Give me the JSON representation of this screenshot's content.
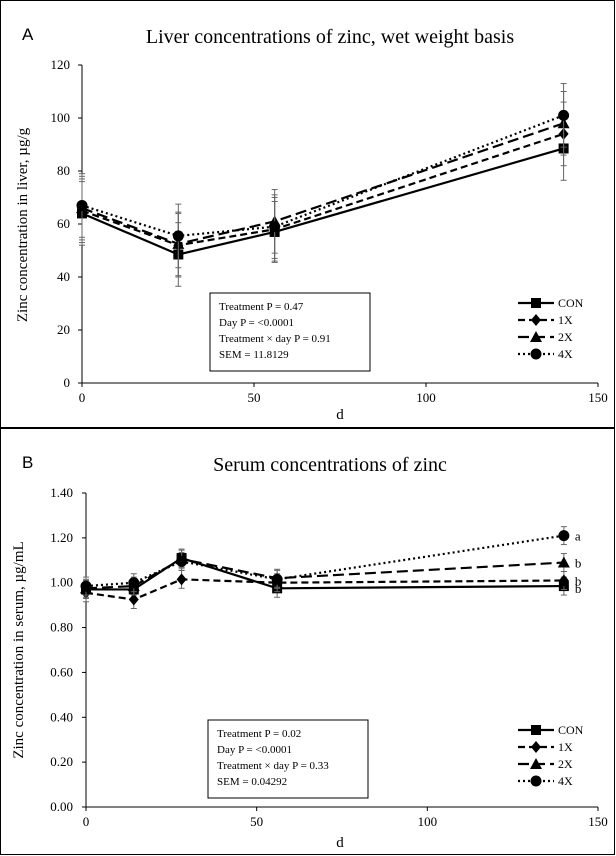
{
  "chart_data": [
    {
      "type": "line",
      "panel_label": "A",
      "title": "Liver concentrations of zinc, wet weight basis",
      "xlabel": "d",
      "ylabel": "Zinc concentration in liver, µg/g",
      "xlim": [
        0,
        150
      ],
      "ylim": [
        0,
        120
      ],
      "xticks": [
        "0",
        "50",
        "100",
        "150"
      ],
      "yticks": [
        "0",
        "20",
        "40",
        "60",
        "80",
        "100",
        "120"
      ],
      "grid": false,
      "legend_position": "bottom-right",
      "stats_box": [
        "Treatment P = 0.47",
        "Day P = <0.0001",
        "Treatment × day P = 0.91",
        "SEM = 11.8129"
      ],
      "series": [
        {
          "name": "CON",
          "marker": "square",
          "dash": "solid",
          "x": [
            0,
            28,
            56,
            140
          ],
          "y": [
            64,
            48.5,
            57,
            88.5
          ],
          "err": [
            12,
            12,
            11.5,
            12
          ]
        },
        {
          "name": "1X",
          "marker": "diamond",
          "dash": "dashed",
          "x": [
            0,
            28,
            56,
            140
          ],
          "y": [
            65,
            52,
            58,
            94
          ],
          "err": [
            12,
            12,
            12,
            12
          ]
        },
        {
          "name": "2X",
          "marker": "triangle",
          "dash": "longdash",
          "x": [
            0,
            28,
            56,
            140
          ],
          "y": [
            66,
            52.5,
            61,
            98
          ],
          "err": [
            12,
            12,
            12,
            12
          ]
        },
        {
          "name": "4X",
          "marker": "circle",
          "dash": "dotted",
          "x": [
            0,
            28,
            56,
            140
          ],
          "y": [
            67,
            55.5,
            59,
            101
          ],
          "err": [
            12,
            12,
            12,
            12
          ]
        }
      ]
    },
    {
      "type": "line",
      "panel_label": "B",
      "title": "Serum concentrations of zinc",
      "xlabel": "d",
      "ylabel": "Zinc concentration in serum, µg/mL",
      "xlim": [
        0,
        150
      ],
      "ylim": [
        0,
        1.4
      ],
      "xticks": [
        "0",
        "50",
        "100",
        "150"
      ],
      "yticks": [
        "0.00",
        "0.20",
        "0.40",
        "0.60",
        "0.80",
        "1.00",
        "1.20",
        "1.40"
      ],
      "grid": false,
      "legend_position": "bottom-right",
      "stats_box": [
        "Treatment P = 0.02",
        "Day P = <0.0001",
        "Treatment × day P = 0.33",
        "SEM = 0.04292"
      ],
      "annotations": [
        "a",
        "b",
        "b",
        "b"
      ],
      "series": [
        {
          "name": "CON",
          "marker": "square",
          "dash": "solid",
          "x": [
            0,
            14,
            28,
            56,
            140
          ],
          "y": [
            0.97,
            0.97,
            1.11,
            0.975,
            0.985
          ],
          "err": [
            0.04,
            0.04,
            0.04,
            0.04,
            0.04
          ]
        },
        {
          "name": "1X",
          "marker": "diamond",
          "dash": "dashed",
          "x": [
            0,
            14,
            28,
            56,
            140
          ],
          "y": [
            0.955,
            0.925,
            1.015,
            1.0,
            1.01
          ],
          "err": [
            0.04,
            0.04,
            0.04,
            0.04,
            0.04
          ]
        },
        {
          "name": "2X",
          "marker": "triangle",
          "dash": "longdash",
          "x": [
            0,
            14,
            28,
            56,
            140
          ],
          "y": [
            0.975,
            0.985,
            1.105,
            1.02,
            1.09
          ],
          "err": [
            0.04,
            0.04,
            0.04,
            0.04,
            0.04
          ]
        },
        {
          "name": "4X",
          "marker": "circle",
          "dash": "dotted",
          "x": [
            0,
            14,
            28,
            56,
            140
          ],
          "y": [
            0.985,
            1.0,
            1.095,
            1.015,
            1.21
          ],
          "err": [
            0.04,
            0.04,
            0.04,
            0.04,
            0.04
          ]
        }
      ]
    }
  ]
}
